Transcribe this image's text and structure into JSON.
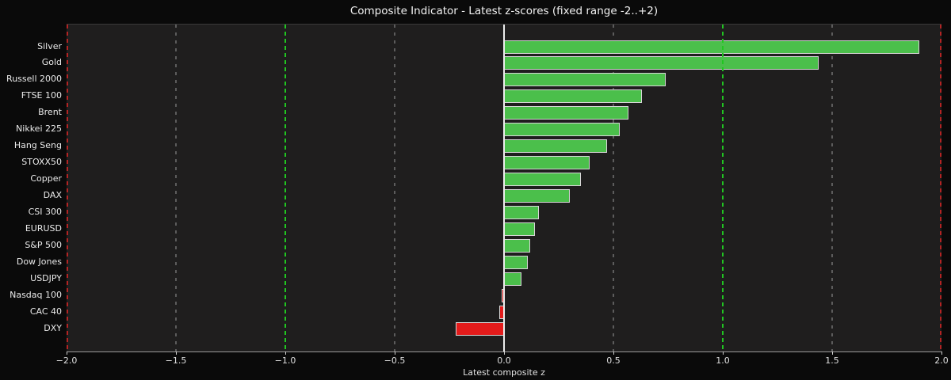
{
  "title": "Composite Indicator - Latest z-scores (fixed range -2..+2)",
  "xlabel": "Latest composite z",
  "chart_data": {
    "type": "bar",
    "orientation": "horizontal",
    "title": "Composite Indicator - Latest z-scores (fixed range -2..+2)",
    "xlabel": "Latest composite z",
    "xlim": [
      -2,
      2
    ],
    "grid": "vertical-dashed",
    "categories": [
      "Silver",
      "Gold",
      "Russell 2000",
      "FTSE 100",
      "Brent",
      "Nikkei 225",
      "Hang Seng",
      "STOXX50",
      "Copper",
      "DAX",
      "CSI 300",
      "EURUSD",
      "S&P 500",
      "Dow Jones",
      "USDJPY",
      "Nasdaq 100",
      "CAC 40",
      "DXY"
    ],
    "values": [
      1.9,
      1.44,
      0.74,
      0.63,
      0.57,
      0.53,
      0.47,
      0.39,
      0.35,
      0.3,
      0.16,
      0.14,
      0.12,
      0.11,
      0.08,
      -0.01,
      -0.02,
      -0.22
    ],
    "x_ticks": [
      "-2.0",
      "-1.5",
      "-1.0",
      "-0.5",
      "0.0",
      "0.5",
      "1.0",
      "1.5",
      "2.0"
    ],
    "x_tick_values": [
      -2.0,
      -1.5,
      -1.0,
      -0.5,
      0.0,
      0.5,
      1.0,
      1.5,
      2.0
    ],
    "reference_lines": {
      "zero_line": 0,
      "green_dashed": [
        -1.0,
        1.0
      ],
      "red_dashed": [
        -2.0,
        2.0
      ],
      "gray_dashed": [
        -1.5,
        -0.5,
        0.5,
        1.5
      ]
    },
    "colors": {
      "positive_bar": "#4bbf4b",
      "negative_bar": "#e31b1b",
      "bar_edge": "#d6d6d6",
      "zero_line": "#ededed",
      "green_reference": "#21c621",
      "red_reference": "#b22424",
      "gray_grid": "#8f8f8f",
      "axes_background": "#1f1e1e",
      "figure_background": "#0a0a0a"
    }
  }
}
